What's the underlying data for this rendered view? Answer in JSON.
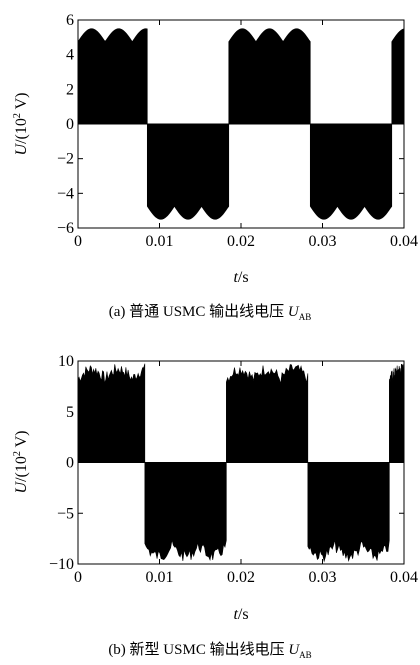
{
  "chart_data": [
    {
      "type": "area",
      "description_kind": "PWM line voltage waveform (filled envelope)",
      "xlim": [
        0,
        0.04
      ],
      "ylim": [
        -6,
        6
      ],
      "x_ticks": [
        "0",
        "0.01",
        "0.02",
        "0.03",
        "0.04"
      ],
      "y_ticks": [
        "6",
        "4",
        "2",
        "0",
        "−2",
        "−4",
        "−6"
      ],
      "xlabel_italic": "t",
      "xlabel_rest": "/s",
      "ylabel_italic": "U",
      "ylabel_rest": "/(10",
      "ylabel_sup": "2",
      "ylabel_tail": " V)",
      "caption_prefix": "(a) 普通 USMC 输出线电压 ",
      "caption_var": "U",
      "caption_sub": "AB",
      "intervals": [
        {
          "x0": 0.0,
          "x1": 0.0085,
          "sign": 1
        },
        {
          "x0": 0.0085,
          "x1": 0.0185,
          "sign": -1
        },
        {
          "x0": 0.0185,
          "x1": 0.0285,
          "sign": 1
        },
        {
          "x0": 0.0285,
          "x1": 0.0385,
          "sign": -1
        },
        {
          "x0": 0.0385,
          "x1": 0.04,
          "sign": 1
        }
      ],
      "envelope_peak": 5.5,
      "envelope_valley": 4.75,
      "envelope_period": 0.00333,
      "noise": 0
    },
    {
      "type": "area",
      "description_kind": "PWM line voltage waveform (filled envelope)",
      "xlim": [
        0,
        0.04
      ],
      "ylim": [
        -10,
        10
      ],
      "x_ticks": [
        "0",
        "0.01",
        "0.02",
        "0.03",
        "0.04"
      ],
      "y_ticks": [
        "10",
        "5",
        "0",
        "−5",
        "−10"
      ],
      "xlabel_italic": "t",
      "xlabel_rest": "/s",
      "ylabel_italic": "U",
      "ylabel_rest": "/(10",
      "ylabel_sup": "2",
      "ylabel_tail": " V)",
      "caption_prefix": "(b) 新型 USMC 输出线电压 ",
      "caption_var": "U",
      "caption_sub": "AB",
      "intervals": [
        {
          "x0": 0.0,
          "x1": 0.0082,
          "sign": 1
        },
        {
          "x0": 0.0082,
          "x1": 0.0182,
          "sign": -1
        },
        {
          "x0": 0.0182,
          "x1": 0.0282,
          "sign": 1
        },
        {
          "x0": 0.0282,
          "x1": 0.0382,
          "sign": -1
        },
        {
          "x0": 0.0382,
          "x1": 0.04,
          "sign": 1
        }
      ],
      "envelope_peak": 9.2,
      "envelope_valley": 8.2,
      "envelope_period": 0.00333,
      "noise": 0.6
    }
  ]
}
